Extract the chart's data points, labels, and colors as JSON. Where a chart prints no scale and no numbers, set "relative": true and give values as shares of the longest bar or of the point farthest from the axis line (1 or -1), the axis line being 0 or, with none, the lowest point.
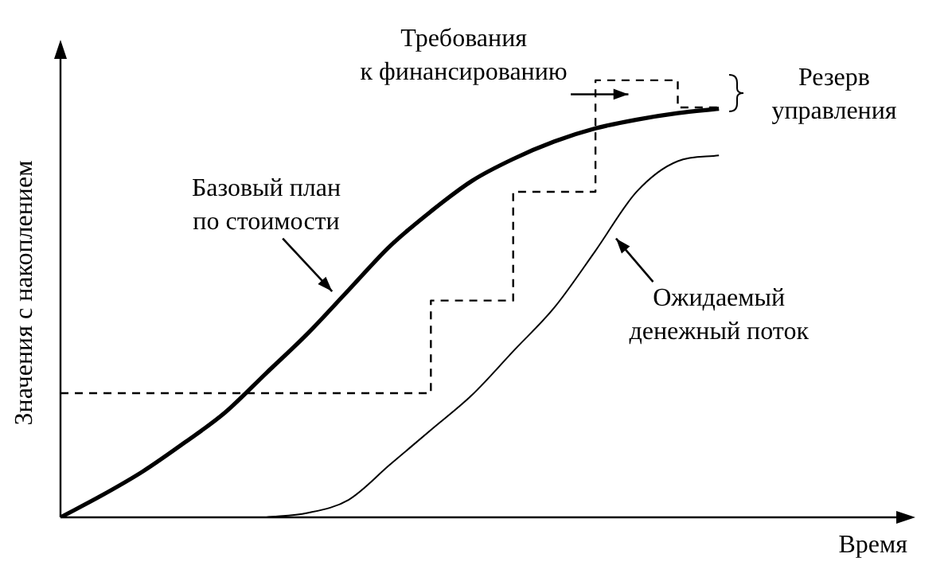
{
  "chart_data": {
    "type": "line",
    "relative": true,
    "tick_labels": false,
    "xlabel": "Время",
    "ylabel": "Значения с накоплением",
    "categories": [
      null,
      null,
      null,
      null,
      null,
      null,
      null,
      null,
      null,
      null,
      null,
      null,
      null,
      null,
      null,
      null,
      null,
      null,
      null,
      null,
      null
    ],
    "series": [
      {
        "color": "#000000",
        "values": [
          0,
          0.05,
          0.105,
          0.17,
          0.24,
          0.33,
          0.42,
          0.52,
          0.62,
          0.7,
          0.77,
          0.82,
          0.86,
          0.89,
          0.91,
          0.925,
          0.935,
          null,
          null,
          null,
          null
        ]
      },
      {
        "color": "#000000",
        "values": [
          null,
          null,
          null,
          null,
          null,
          0,
          0.01,
          0.04,
          0.12,
          0.2,
          0.28,
          0.38,
          0.48,
          0.61,
          0.745,
          0.815,
          0.828,
          null,
          null,
          null,
          null
        ]
      },
      {
        "type": "step",
        "color": "#000000",
        "line_style": "dashed",
        "values": [
          0.284,
          0.284,
          0.284,
          0.284,
          0.284,
          0.284,
          0.284,
          0.284,
          0.284,
          0.284,
          0.496,
          0.496,
          0.745,
          0.745,
          1,
          1,
          0.938,
          null,
          null,
          null,
          null
        ]
      }
    ],
    "annotations": [
      "Требования\nк финансированию",
      "Базовый план\nпо стоимости",
      "Ожидаемый\nденежный поток",
      "Резерв\nуправления"
    ]
  }
}
